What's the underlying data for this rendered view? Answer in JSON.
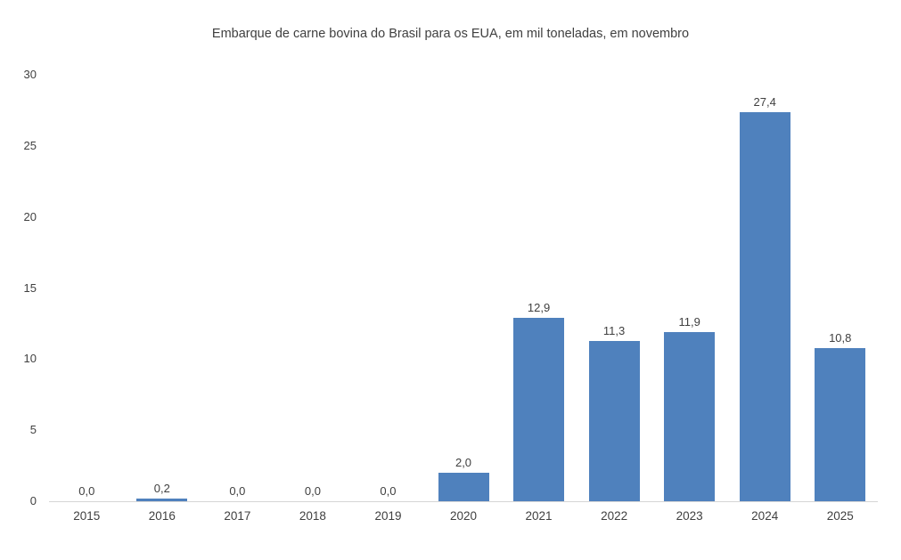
{
  "chart_data": {
    "type": "bar",
    "title": "Embarque de carne bovina do Brasil para os EUA, em mil toneladas, em novembro",
    "categories": [
      "2015",
      "2016",
      "2017",
      "2018",
      "2019",
      "2020",
      "2021",
      "2022",
      "2023",
      "2024",
      "2025"
    ],
    "values": [
      0.0,
      0.2,
      0.0,
      0.0,
      0.0,
      2.0,
      12.9,
      11.3,
      11.9,
      27.4,
      10.8
    ],
    "value_labels": [
      "0,0",
      "0,2",
      "0,0",
      "0,0",
      "0,0",
      "2,0",
      "12,9",
      "11,3",
      "11,9",
      "27,4",
      "10,8"
    ],
    "xlabel": "",
    "ylabel": "",
    "ylim": [
      0,
      30
    ],
    "yticks": [
      0,
      5,
      10,
      15,
      20,
      25,
      30
    ],
    "bar_color": "#4f81bd",
    "grid": false,
    "legend_position": "none",
    "background_color": "#ffffff",
    "text_color": "#404040"
  }
}
